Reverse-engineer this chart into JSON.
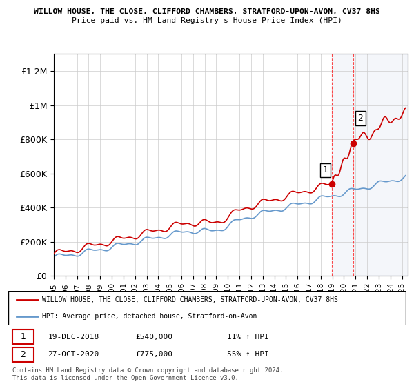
{
  "title_line1": "WILLOW HOUSE, THE CLOSE, CLIFFORD CHAMBERS, STRATFORD-UPON-AVON, CV37 8HS",
  "title_line2": "Price paid vs. HM Land Registry's House Price Index (HPI)",
  "ylabel_ticks": [
    "£0",
    "£200K",
    "£400K",
    "£600K",
    "£800K",
    "£1M",
    "£1.2M"
  ],
  "ylabel_values": [
    0,
    200000,
    400000,
    600000,
    800000,
    1000000,
    1200000
  ],
  "ylim": [
    0,
    1300000
  ],
  "xlim_start": 1995.0,
  "xlim_end": 2025.5,
  "hpi_color": "#6699cc",
  "price_color": "#cc0000",
  "transaction1_date": "19-DEC-2018",
  "transaction1_price": 540000,
  "transaction1_label": "11% ↑ HPI",
  "transaction1_x": 2018.96,
  "transaction2_date": "27-OCT-2020",
  "transaction2_price": 775000,
  "transaction2_label": "55% ↑ HPI",
  "transaction2_x": 2020.82,
  "legend_property": "WILLOW HOUSE, THE CLOSE, CLIFFORD CHAMBERS, STRATFORD-UPON-AVON, CV37 8HS",
  "legend_hpi": "HPI: Average price, detached house, Stratford-on-Avon",
  "footnote": "Contains HM Land Registry data © Crown copyright and database right 2024.\nThis data is licensed under the Open Government Licence v3.0.",
  "shade_x1": 2018.96,
  "shade_x2": 2025.5,
  "background_color": "#ffffff",
  "grid_color": "#cccccc"
}
